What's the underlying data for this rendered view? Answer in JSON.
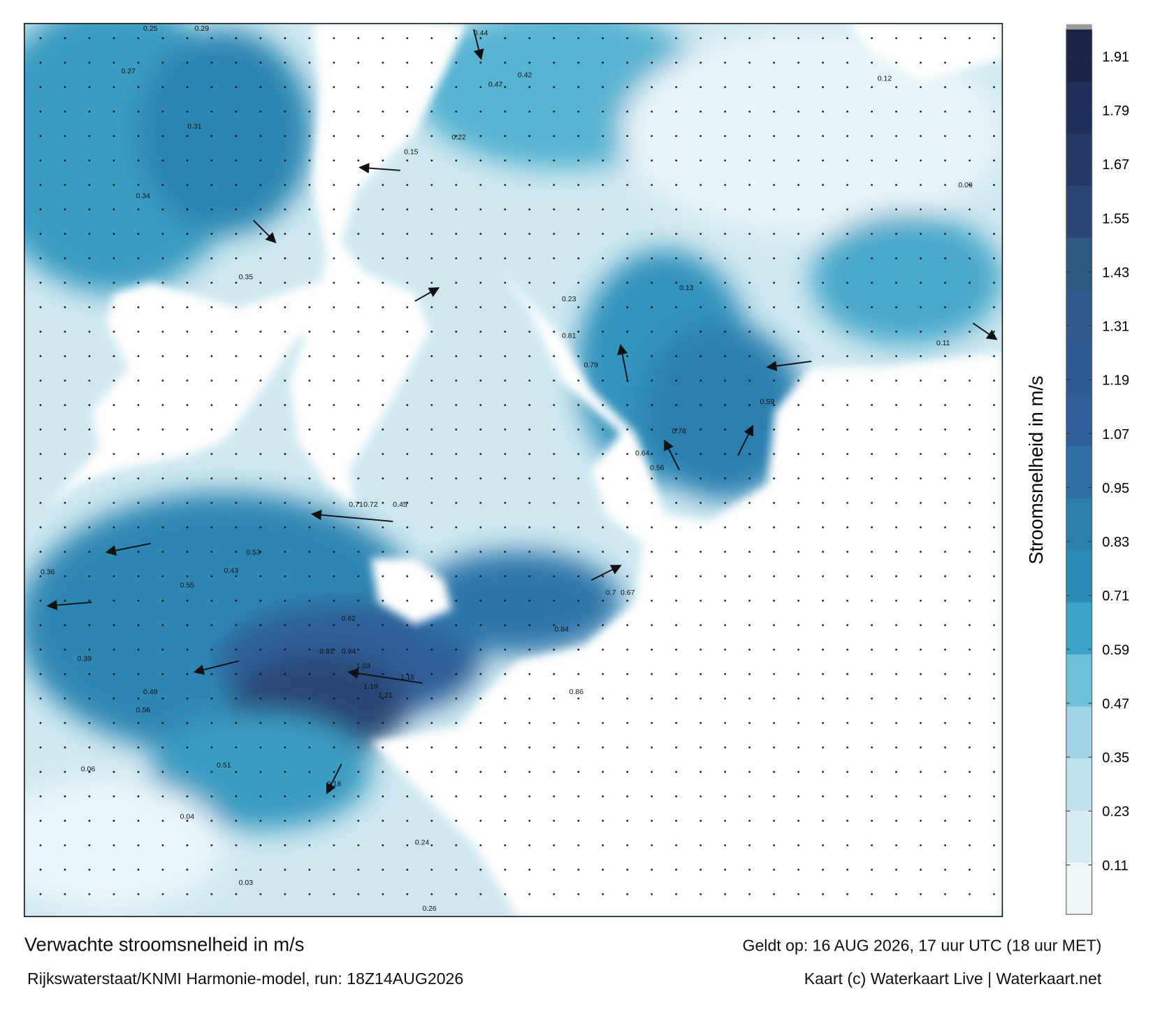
{
  "chart_data": {
    "type": "map",
    "title": "Verwachte stroomsnelheid in m/s",
    "valid_time": "Geldt op: 16 AUG 2026, 17 uur UTC (18 uur MET)",
    "source": "Rijkswaterstaat/KNMI Harmonie-model, run: 18Z14AUG2026",
    "credit": "Kaart (c) Waterkaart Live | Waterkaart.net",
    "colorbar": {
      "label": "Stroomsnelheid in m/s",
      "lim": [
        0,
        1.97
      ],
      "ticks": [
        0.11,
        0.23,
        0.35,
        0.47,
        0.59,
        0.71,
        0.83,
        0.95,
        1.07,
        1.19,
        1.31,
        1.43,
        1.55,
        1.67,
        1.79,
        1.91
      ],
      "colors": [
        "#eef6f9",
        "#d6ecf3",
        "#bfe2ee",
        "#9fd3e5",
        "#6fbfd8",
        "#3da3c6",
        "#2a8cb5",
        "#2a7fab",
        "#2f6fa3",
        "#2f5f98",
        "#305892",
        "#33598d",
        "#2f5a7e",
        "#2b4675",
        "#263a68",
        "#1f2f5a",
        "#1b2448"
      ]
    },
    "map_labels": [
      0.25,
      0.29,
      0.27,
      0.44,
      0.31,
      0.34,
      0.35,
      0.23,
      0.47,
      0.42,
      0.15,
      0.22,
      0.59,
      0.81,
      0.79,
      0.56,
      0.64,
      0.78,
      0.45,
      0.72,
      0.71,
      0.91,
      0.94,
      1.03,
      1.15,
      1.21,
      1.19,
      0.86,
      0.62,
      0.49,
      0.56,
      0.55,
      0.39,
      0.36,
      0.53,
      0.51,
      0.43,
      0.7,
      0.67,
      0.84,
      0.24,
      0.26,
      0.04,
      0.03,
      0.06,
      0.18,
      0.13,
      0.09,
      0.11,
      0.12
    ]
  }
}
